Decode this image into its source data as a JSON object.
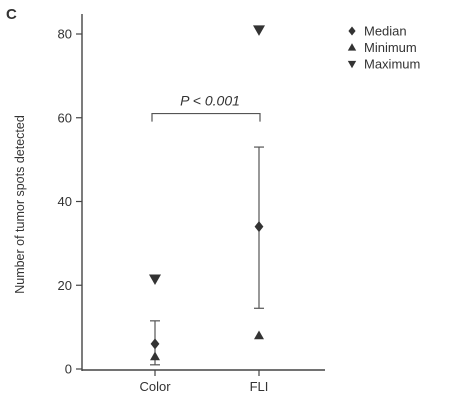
{
  "panel_label": "C",
  "chart_data": {
    "type": "scatter",
    "title": "",
    "xlabel": "",
    "ylabel": "Number of tumor spots detected",
    "categories": [
      "Color",
      "FLI"
    ],
    "ylim": [
      0,
      85
    ],
    "yticks": [
      0,
      20,
      40,
      60,
      80
    ],
    "grid": false,
    "legend_position": "top-right",
    "series": [
      {
        "name": "Median",
        "marker": "diamond",
        "values": [
          6,
          34
        ]
      },
      {
        "name": "Minimum",
        "marker": "triangle-up",
        "values": [
          3,
          8
        ]
      },
      {
        "name": "Maximum",
        "marker": "triangle-down",
        "values": [
          21.5,
          81
        ]
      }
    ],
    "error_bars": [
      {
        "category": "Color",
        "low": 1,
        "high": 11.5
      },
      {
        "category": "FLI",
        "low": 14.5,
        "high": 53
      }
    ],
    "annotations": [
      {
        "text": "P < 0.001",
        "bracket": [
          "Color",
          "FLI"
        ],
        "y": 61
      }
    ],
    "colors": {
      "axis": "#444444",
      "marker": "#333333",
      "text": "#333333"
    }
  }
}
